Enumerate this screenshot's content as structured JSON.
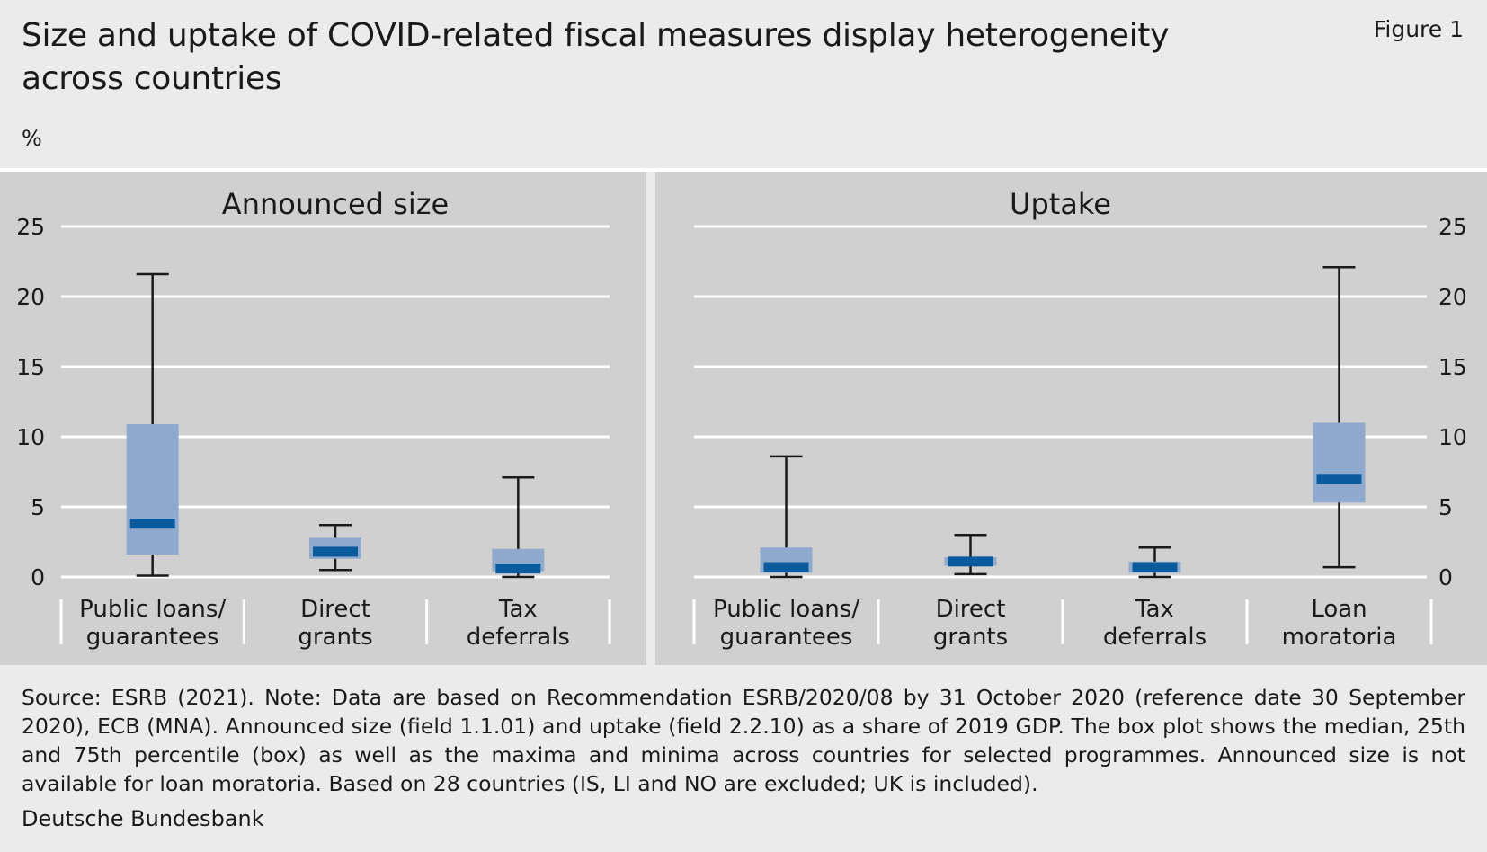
{
  "title": "Size and uptake of COVID-related fiscal measures display heterogeneity across countries",
  "figure_label": "Figure 1",
  "unit": "%",
  "footnote": "Source: ESRB (2021). Note: Data are based on Recommendation ESRB/2020/08 by 31 October 2020 (reference date 30 September 2020), ECB (MNA). Announced size (field 1.1.01) and uptake (field 2.2.10) as a share of 2019 GDP. The box plot shows the median, 25th and 75th percentile (box) as well as the maxima and minima across countries for selected programmes. Announced size is not available for loan moratoria. Based on 28 countries (IS, LI and NO are excluded; UK is included).",
  "source_org": "Deutsche Bundesbank",
  "colors": {
    "page_bg": "#ebebeb",
    "panel_bg": "#d0d0d0",
    "box": "#8faacd",
    "median": "#0a5a9e",
    "whisker": "#1a1a1a",
    "grid": "#ffffff"
  },
  "chart_data": [
    {
      "type": "box",
      "title": "Announced size",
      "ylim": [
        0,
        25
      ],
      "yticks": [
        0,
        5,
        10,
        15,
        20,
        25
      ],
      "ytick_labels": [
        "0",
        "5",
        "10",
        "15",
        "20",
        "25"
      ],
      "y_axis_side": "left",
      "grid": true,
      "categories": [
        [
          "Public loans/",
          "guarantees"
        ],
        [
          "Direct",
          "grants"
        ],
        [
          "Tax",
          "deferrals"
        ]
      ],
      "boxes": [
        {
          "min": 0.1,
          "q1": 1.6,
          "median": 3.8,
          "q3": 10.9,
          "max": 21.6
        },
        {
          "min": 0.5,
          "q1": 1.3,
          "median": 1.8,
          "q3": 2.8,
          "max": 3.7
        },
        {
          "min": 0.0,
          "q1": 0.4,
          "median": 0.6,
          "q3": 2.0,
          "max": 7.1
        }
      ]
    },
    {
      "type": "box",
      "title": "Uptake",
      "ylim": [
        0,
        25
      ],
      "yticks": [
        0,
        5,
        10,
        15,
        20,
        25
      ],
      "ytick_labels": [
        "0",
        "5",
        "10",
        "15",
        "20",
        "25"
      ],
      "y_axis_side": "right",
      "grid": true,
      "categories": [
        [
          "Public loans/",
          "guarantees"
        ],
        [
          "Direct",
          "grants"
        ],
        [
          "Tax",
          "deferrals"
        ],
        [
          "Loan",
          "moratoria"
        ]
      ],
      "boxes": [
        {
          "min": 0.0,
          "q1": 0.3,
          "median": 0.7,
          "q3": 2.1,
          "max": 8.6
        },
        {
          "min": 0.2,
          "q1": 0.8,
          "median": 1.1,
          "q3": 1.4,
          "max": 3.0
        },
        {
          "min": 0.0,
          "q1": 0.3,
          "median": 0.7,
          "q3": 1.1,
          "max": 2.1
        },
        {
          "min": 0.7,
          "q1": 5.3,
          "median": 7.0,
          "q3": 11.0,
          "max": 22.1
        }
      ]
    }
  ]
}
